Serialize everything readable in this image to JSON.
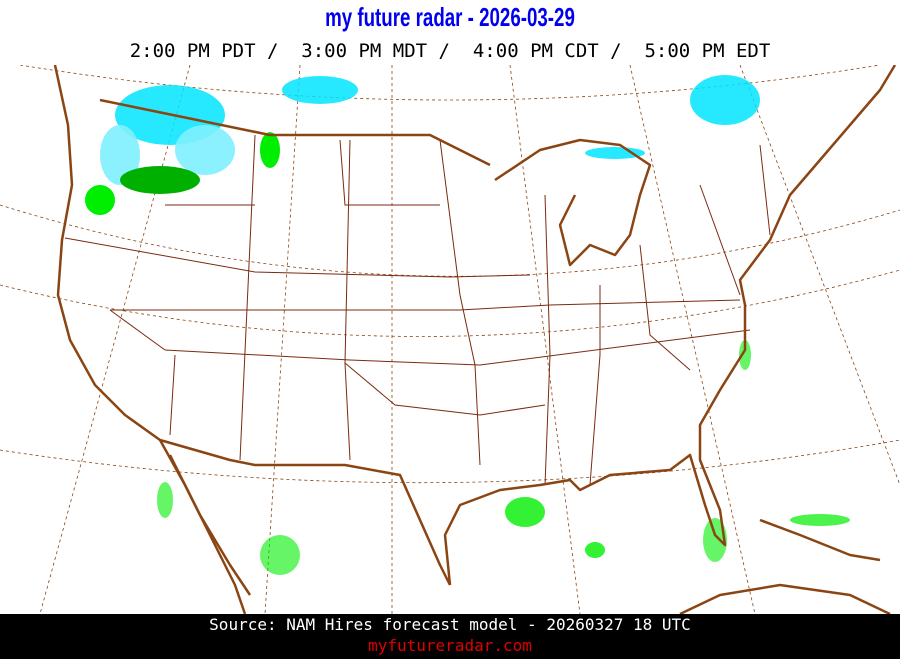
{
  "header": {
    "title": "my future radar - 2026-03-29",
    "times": "2:00 PM PDT /  3:00 PM MDT /  4:00 PM CDT /  5:00 PM EDT"
  },
  "map": {
    "coastline_color": "#8b4513",
    "border_color": "#7a2a10",
    "gridline_color": "#8b4513",
    "precip_colors": {
      "snow": "#00e5ff",
      "snow_light": "#7fefff",
      "rain_light": "#00ee00",
      "rain_moderate": "#00b000"
    }
  },
  "footer": {
    "source": "Source: NAM Hires forecast model - 20260327 18 UTC",
    "site": "myfutureradar.com"
  }
}
